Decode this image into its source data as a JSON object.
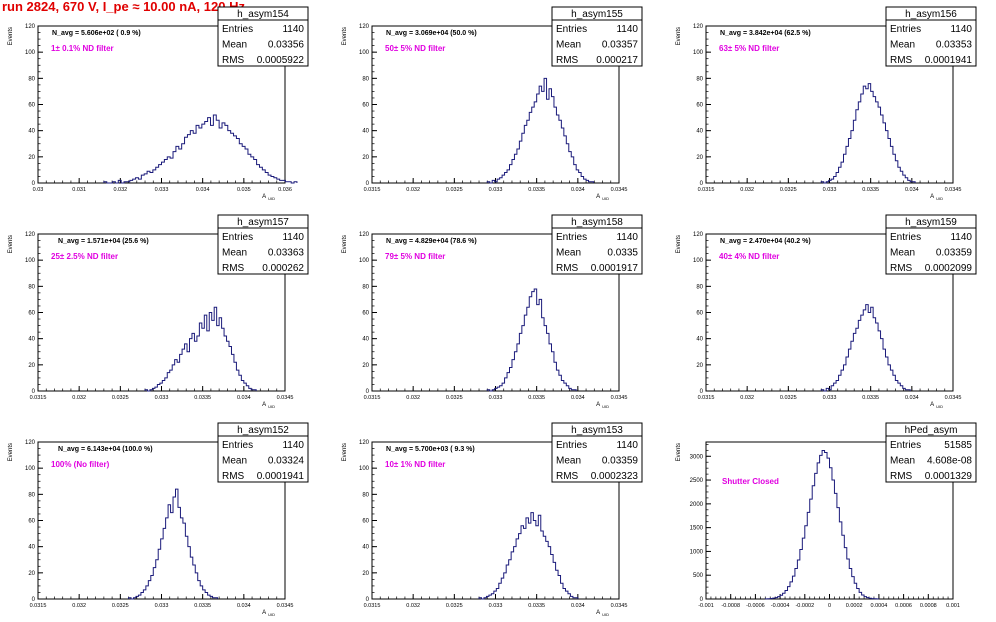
{
  "header": {
    "title": "run 2824,   670 V, I_pe ≈ 10.00 nA, 120 Hz"
  },
  "colors": {
    "histogram": "#1a1a7a",
    "annotation": "#e000e0",
    "title": "#e00000"
  },
  "chart_data": [
    {
      "type": "histogram",
      "name": "h_asym154",
      "navg": "N_avg = 5.606e+02 ( 0.9 %)",
      "filter": "1± 0.1% ND filter",
      "stats": {
        "entries": "1140",
        "mean": "0.03356",
        "rms": "0.0005922"
      },
      "xlabel": "A_UID",
      "ylabel": "Events",
      "xlim": [
        0.03,
        0.036
      ],
      "ylim": [
        0,
        120
      ],
      "xticks": [
        0.03,
        0.031,
        0.032,
        0.033,
        0.034,
        0.035,
        0.036
      ],
      "xtick_labels": [
        "0.03",
        "0.031",
        "0.032",
        "0.033",
        "0.034",
        "0.035",
        "0.036"
      ],
      "yticks": [
        0,
        20,
        40,
        60,
        80,
        100,
        120
      ],
      "bins_start": 0.0316,
      "bin_width": 7e-05,
      "values": [
        1,
        0,
        0,
        1,
        0,
        2,
        0,
        1,
        1,
        2,
        3,
        4,
        3,
        6,
        7,
        9,
        8,
        10,
        12,
        14,
        16,
        18,
        20,
        19,
        24,
        28,
        26,
        30,
        35,
        37,
        40,
        38,
        44,
        42,
        45,
        47,
        50,
        44,
        52,
        48,
        42,
        46,
        44,
        40,
        38,
        36,
        34,
        30,
        28,
        26,
        22,
        20,
        18,
        14,
        12,
        10,
        8,
        6,
        5,
        4,
        3,
        2,
        2,
        1,
        1,
        0,
        1
      ]
    },
    {
      "type": "histogram",
      "name": "h_asym155",
      "navg": "N_avg = 3.069e+04 (50.0 %)",
      "filter": "50± 5% ND filter",
      "stats": {
        "entries": "1140",
        "mean": "0.03357",
        "rms": "0.000217"
      },
      "xlabel": "A_UID",
      "ylabel": "Events",
      "xlim": [
        0.0315,
        0.0345
      ],
      "ylim": [
        0,
        120
      ],
      "xticks": [
        0.0315,
        0.032,
        0.0325,
        0.033,
        0.0335,
        0.034,
        0.0345
      ],
      "xtick_labels": [
        "0.0315",
        "0.032",
        "0.0325",
        "0.033",
        "0.0335",
        "0.034",
        "0.0345"
      ],
      "yticks": [
        0,
        20,
        40,
        60,
        80,
        100,
        120
      ],
      "bins_start": 0.0329,
      "bin_width": 3e-05,
      "values": [
        1,
        0,
        2,
        1,
        3,
        4,
        6,
        8,
        10,
        14,
        18,
        22,
        26,
        32,
        38,
        44,
        48,
        54,
        58,
        62,
        68,
        74,
        70,
        80,
        64,
        72,
        66,
        58,
        52,
        48,
        42,
        36,
        30,
        24,
        20,
        14,
        10,
        8,
        5,
        3,
        2,
        1,
        1
      ]
    },
    {
      "type": "histogram",
      "name": "h_asym156",
      "navg": "N_avg = 3.842e+04 (62.5 %)",
      "filter": "63± 5% ND filter",
      "stats": {
        "entries": "1140",
        "mean": "0.03353",
        "rms": "0.0001941"
      },
      "xlabel": "A_UID",
      "ylabel": "Events",
      "xlim": [
        0.0315,
        0.0345
      ],
      "ylim": [
        0,
        120
      ],
      "xticks": [
        0.0315,
        0.032,
        0.0325,
        0.033,
        0.0335,
        0.034,
        0.0345
      ],
      "xtick_labels": [
        "0.0315",
        "0.032",
        "0.0325",
        "0.033",
        "0.0335",
        "0.034",
        "0.0345"
      ],
      "yticks": [
        0,
        20,
        40,
        60,
        80,
        100,
        120
      ],
      "bins_start": 0.0329,
      "bin_width": 3e-05,
      "values": [
        1,
        0,
        1,
        2,
        3,
        5,
        8,
        12,
        16,
        22,
        28,
        34,
        40,
        48,
        56,
        62,
        68,
        74,
        72,
        76,
        70,
        66,
        62,
        58,
        52,
        46,
        40,
        34,
        28,
        22,
        17,
        12,
        9,
        6,
        4,
        2,
        1,
        1
      ]
    },
    {
      "type": "histogram",
      "name": "h_asym157",
      "navg": "N_avg = 1.571e+04 (25.6 %)",
      "filter": "25± 2.5% ND filter",
      "stats": {
        "entries": "1140",
        "mean": "0.03363",
        "rms": "0.000262"
      },
      "xlabel": "A_UID",
      "ylabel": "Events",
      "xlim": [
        0.0315,
        0.0345
      ],
      "ylim": [
        0,
        120
      ],
      "xticks": [
        0.0315,
        0.032,
        0.0325,
        0.033,
        0.0335,
        0.034,
        0.0345
      ],
      "xtick_labels": [
        "0.0315",
        "0.032",
        "0.0325",
        "0.033",
        "0.0335",
        "0.034",
        "0.0345"
      ],
      "yticks": [
        0,
        20,
        40,
        60,
        80,
        100,
        120
      ],
      "bins_start": 0.0328,
      "bin_width": 3e-05,
      "values": [
        1,
        0,
        1,
        2,
        3,
        5,
        6,
        8,
        10,
        14,
        16,
        20,
        24,
        22,
        28,
        32,
        36,
        30,
        40,
        44,
        38,
        42,
        52,
        48,
        58,
        46,
        60,
        54,
        64,
        50,
        56,
        48,
        42,
        38,
        34,
        28,
        22,
        16,
        12,
        8,
        6,
        4,
        2,
        1,
        1
      ]
    },
    {
      "type": "histogram",
      "name": "h_asym158",
      "navg": "N_avg = 4.829e+04 (78.6 %)",
      "filter": "79± 5% ND filter",
      "stats": {
        "entries": "1140",
        "mean": "0.0335",
        "rms": "0.0001917"
      },
      "xlabel": "A_UID",
      "ylabel": "Events",
      "xlim": [
        0.0315,
        0.0345
      ],
      "ylim": [
        0,
        120
      ],
      "xticks": [
        0.0315,
        0.032,
        0.0325,
        0.033,
        0.0335,
        0.034,
        0.0345
      ],
      "xtick_labels": [
        "0.0315",
        "0.032",
        "0.0325",
        "0.033",
        "0.0335",
        "0.034",
        "0.0345"
      ],
      "yticks": [
        0,
        20,
        40,
        60,
        80,
        100,
        120
      ],
      "bins_start": 0.0329,
      "bin_width": 3e-05,
      "values": [
        1,
        0,
        1,
        2,
        3,
        4,
        6,
        10,
        14,
        18,
        24,
        30,
        36,
        44,
        50,
        58,
        64,
        72,
        76,
        78,
        66,
        70,
        56,
        50,
        44,
        36,
        30,
        22,
        16,
        12,
        8,
        6,
        4,
        2,
        1,
        1
      ]
    },
    {
      "type": "histogram",
      "name": "h_asym159",
      "navg": "N_avg = 2.470e+04 (40.2 %)",
      "filter": "40± 4% ND filter",
      "stats": {
        "entries": "1140",
        "mean": "0.03359",
        "rms": "0.0002099"
      },
      "xlabel": "A_UID",
      "ylabel": "Events",
      "xlim": [
        0.0315,
        0.0345
      ],
      "ylim": [
        0,
        120
      ],
      "xticks": [
        0.0315,
        0.032,
        0.0325,
        0.033,
        0.0335,
        0.034,
        0.0345
      ],
      "xtick_labels": [
        "0.0315",
        "0.032",
        "0.0325",
        "0.033",
        "0.0335",
        "0.034",
        "0.0345"
      ],
      "yticks": [
        0,
        20,
        40,
        60,
        80,
        100,
        120
      ],
      "bins_start": 0.0329,
      "bin_width": 3e-05,
      "values": [
        1,
        0,
        2,
        1,
        4,
        6,
        8,
        12,
        16,
        20,
        26,
        32,
        38,
        44,
        48,
        54,
        58,
        62,
        66,
        60,
        64,
        56,
        52,
        46,
        40,
        32,
        26,
        20,
        16,
        12,
        8,
        6,
        4,
        2,
        1,
        1
      ]
    },
    {
      "type": "histogram",
      "name": "h_asym152",
      "navg": "N_avg = 6.143e+04 (100.0 %)",
      "filter": "100% (No filter)",
      "stats": {
        "entries": "1140",
        "mean": "0.03324",
        "rms": "0.0001941"
      },
      "xlabel": "A_UID",
      "ylabel": "Events",
      "xlim": [
        0.0315,
        0.0345
      ],
      "ylim": [
        0,
        120
      ],
      "xticks": [
        0.0315,
        0.032,
        0.0325,
        0.033,
        0.0335,
        0.034,
        0.0345
      ],
      "xtick_labels": [
        "0.0315",
        "0.032",
        "0.0325",
        "0.033",
        "0.0335",
        "0.034",
        "0.0345"
      ],
      "yticks": [
        0,
        20,
        40,
        60,
        80,
        100,
        120
      ],
      "bins_start": 0.0326,
      "bin_width": 3e-05,
      "values": [
        1,
        0,
        1,
        2,
        3,
        5,
        7,
        10,
        14,
        18,
        24,
        30,
        38,
        46,
        54,
        62,
        72,
        66,
        78,
        84,
        70,
        62,
        58,
        48,
        40,
        32,
        26,
        20,
        14,
        10,
        7,
        5,
        3,
        2,
        1,
        1
      ]
    },
    {
      "type": "histogram",
      "name": "h_asym153",
      "navg": "N_avg = 5.700e+03 ( 9.3 %)",
      "filter": "10± 1% ND filter",
      "stats": {
        "entries": "1140",
        "mean": "0.03359",
        "rms": "0.0002323"
      },
      "xlabel": "A_UID",
      "ylabel": "Events",
      "xlim": [
        0.0315,
        0.0345
      ],
      "ylim": [
        0,
        120
      ],
      "xticks": [
        0.0315,
        0.032,
        0.0325,
        0.033,
        0.0335,
        0.034,
        0.0345
      ],
      "xtick_labels": [
        "0.0315",
        "0.032",
        "0.0325",
        "0.033",
        "0.0335",
        "0.034",
        "0.0345"
      ],
      "yticks": [
        0,
        20,
        40,
        60,
        80,
        100,
        120
      ],
      "bins_start": 0.0328,
      "bin_width": 3e-05,
      "values": [
        1,
        0,
        1,
        2,
        3,
        4,
        6,
        8,
        12,
        16,
        20,
        26,
        30,
        36,
        40,
        46,
        50,
        56,
        54,
        62,
        58,
        66,
        60,
        56,
        64,
        52,
        48,
        44,
        40,
        34,
        28,
        22,
        18,
        12,
        8,
        6,
        4,
        2,
        1,
        1
      ]
    },
    {
      "type": "histogram",
      "name": "hPed_asym",
      "navg": "",
      "filter": "Shutter Closed",
      "stats": {
        "entries": "51585",
        "mean": "4.608e-08",
        "rms": "0.0001329"
      },
      "xlabel": "",
      "ylabel": "Events",
      "xlim": [
        -0.001,
        0.001
      ],
      "ylim": [
        0,
        3300
      ],
      "xticks": [
        -0.001,
        -0.0008,
        -0.0006,
        -0.0004,
        -0.0002,
        0,
        0.0002,
        0.0004,
        0.0006,
        0.0008,
        0.001
      ],
      "xtick_labels": [
        "-0.001",
        "-0.0008",
        "-0.0006",
        "-0.0004",
        "-0.0002",
        "0",
        "0.0002",
        "0.0004",
        "0.0006",
        "0.0008",
        "0.001"
      ],
      "yticks": [
        0,
        500,
        1000,
        1500,
        2000,
        2500,
        3000
      ],
      "bins_start": -0.00052,
      "bin_width": 2e-05,
      "values": [
        2,
        5,
        10,
        18,
        30,
        50,
        80,
        120,
        180,
        260,
        360,
        480,
        640,
        820,
        1040,
        1280,
        1540,
        1820,
        2100,
        2380,
        2640,
        2860,
        3020,
        3120,
        3080,
        2960,
        2760,
        2500,
        2220,
        1920,
        1620,
        1340,
        1080,
        840,
        640,
        470,
        330,
        220,
        140,
        85,
        50,
        28,
        15,
        8,
        4,
        2
      ]
    }
  ]
}
